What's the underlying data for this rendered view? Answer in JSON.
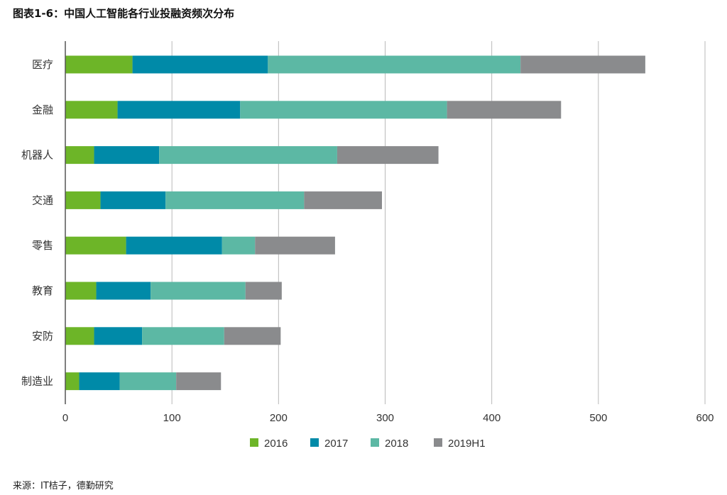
{
  "title": "图表1-6：中国人工智能各行业投融资频次分布",
  "source": "来源：IT桔子，德勤研究",
  "chart_data": {
    "type": "bar",
    "orientation": "horizontal",
    "stacked": true,
    "categories": [
      "医疗",
      "金融",
      "机器人",
      "交通",
      "零售",
      "教育",
      "安防",
      "制造业"
    ],
    "series": [
      {
        "name": "2016",
        "color": "#6db528",
        "values": [
          63,
          49,
          27,
          33,
          57,
          29,
          27,
          13
        ]
      },
      {
        "name": "2017",
        "color": "#008aa8",
        "values": [
          127,
          115,
          61,
          61,
          90,
          51,
          45,
          38
        ]
      },
      {
        "name": "2018",
        "color": "#5cb8a4",
        "values": [
          237,
          194,
          167,
          130,
          31,
          89,
          77,
          53
        ]
      },
      {
        "name": "2019H1",
        "color": "#8a8b8d",
        "values": [
          117,
          107,
          95,
          73,
          75,
          34,
          53,
          42
        ]
      }
    ],
    "xlim": [
      0,
      600
    ],
    "xticks": [
      0,
      100,
      200,
      300,
      400,
      500,
      600
    ],
    "grid": "vertical",
    "legend": "bottom"
  }
}
